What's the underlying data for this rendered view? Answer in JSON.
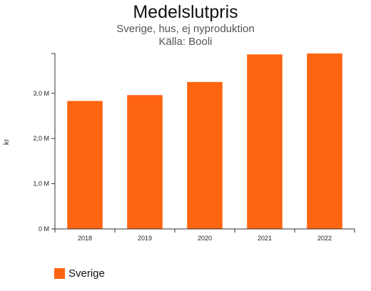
{
  "chart_data": {
    "type": "bar",
    "title": "Medelslutpris",
    "subtitle": [
      "Sverige, hus, ej nyproduktion",
      "Källa: Booli"
    ],
    "xlabel": "",
    "ylabel": "kr",
    "categories": [
      "2018",
      "2019",
      "2020",
      "2021",
      "2022"
    ],
    "series": [
      {
        "name": "Sverige",
        "values": [
          2830000,
          2960000,
          3250000,
          3860000,
          3880000
        ]
      }
    ],
    "ylim": [
      0,
      3880000
    ],
    "yticks": [
      0,
      1000000,
      2000000,
      3000000
    ],
    "ytick_labels": [
      "0 M",
      "1,0 M",
      "2,0 M",
      "3,0 M"
    ],
    "grid": false,
    "legend_position": "bottom-left",
    "colors": {
      "bar": "#ff6410",
      "axis": "#333333"
    }
  }
}
